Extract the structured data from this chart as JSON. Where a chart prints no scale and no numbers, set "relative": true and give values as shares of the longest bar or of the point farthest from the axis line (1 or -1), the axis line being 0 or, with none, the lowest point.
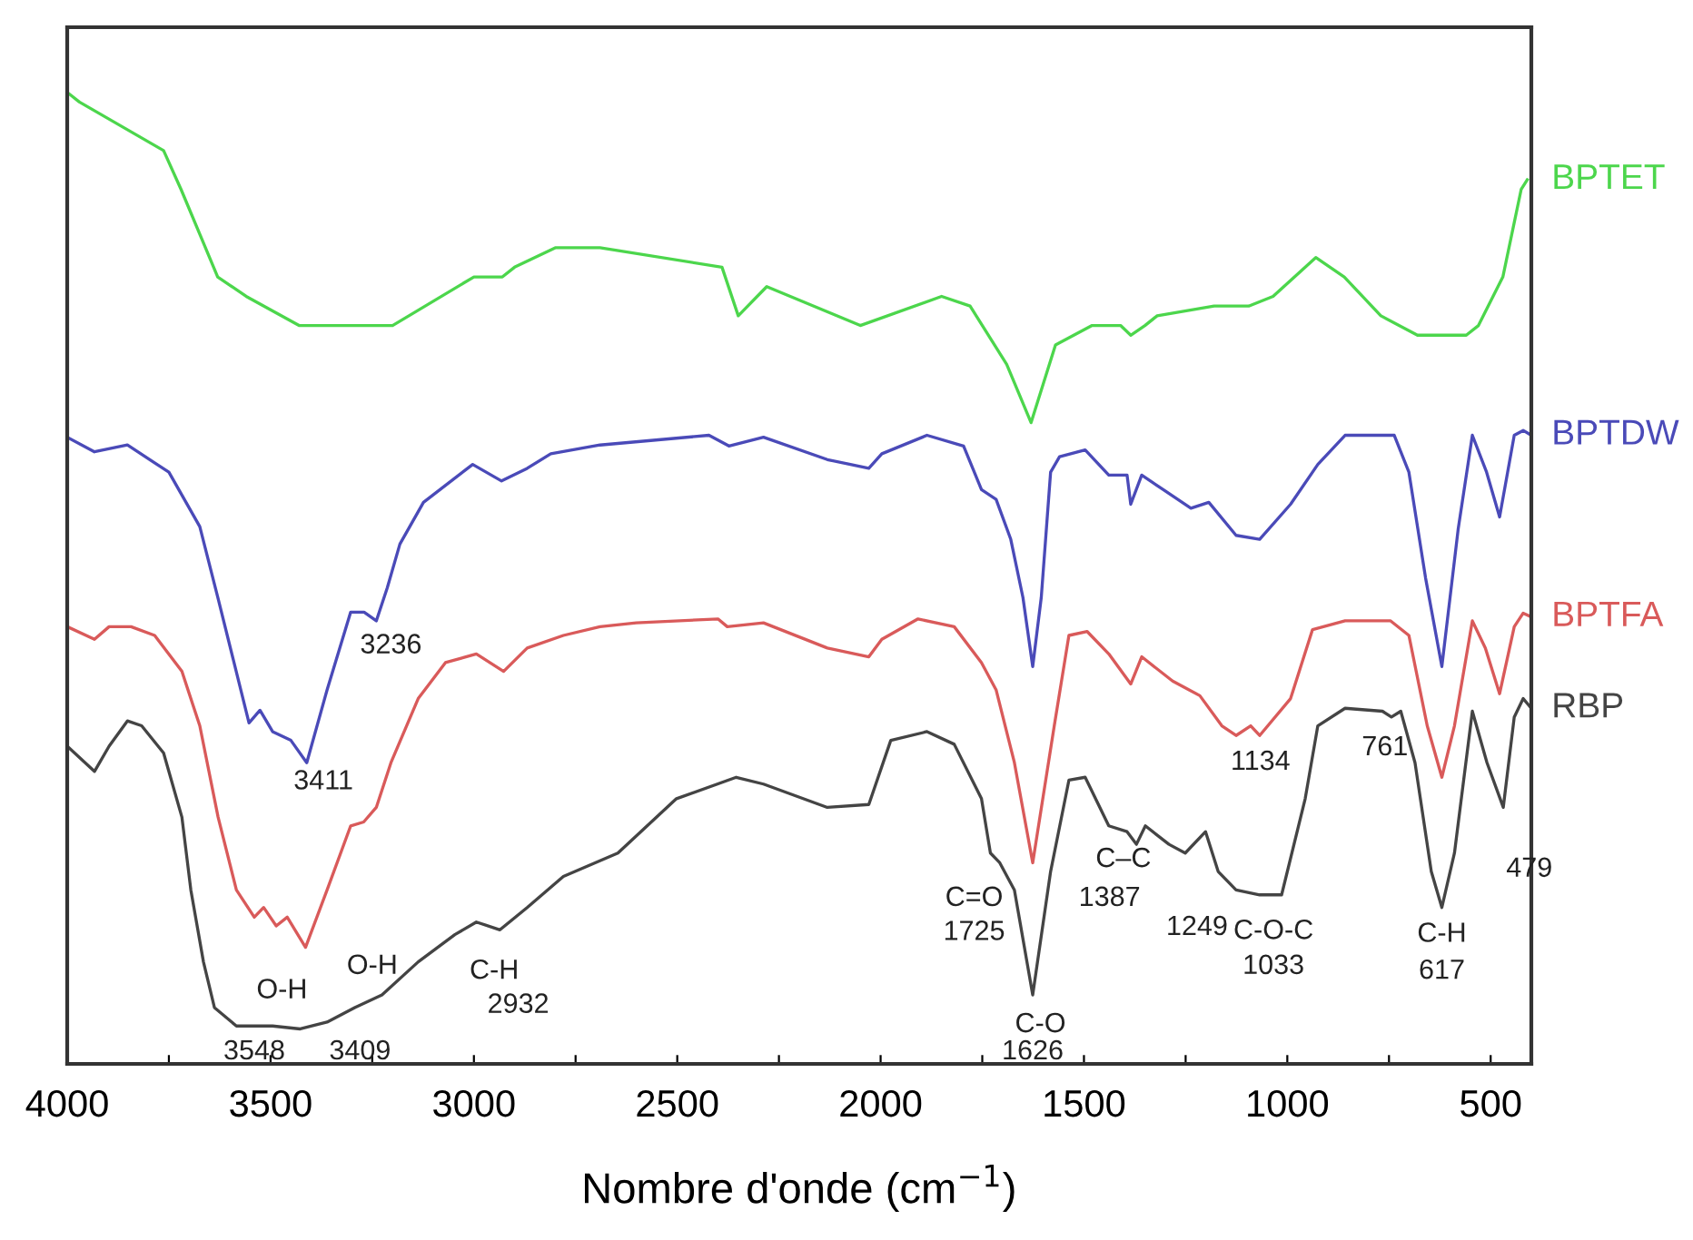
{
  "chart_data": {
    "type": "line",
    "relative": true,
    "xlabel": "Nombre d'onde (cm$^{−1}$)",
    "xlim": [
      4000,
      400
    ],
    "xticks": [
      4000,
      {
        "value": 3750,
        "label": null
      },
      3500,
      {
        "value": 3250,
        "label": null
      },
      3000,
      {
        "value": 2750,
        "label": null
      },
      2500,
      {
        "value": 2250,
        "label": null
      },
      2000,
      {
        "value": 1750,
        "label": null
      },
      1500,
      {
        "value": 1250,
        "label": null
      },
      1000,
      {
        "value": 750,
        "label": null
      },
      500
    ],
    "tick_labels": "x",
    "grid": false,
    "marker": "none",
    "line_style": "solid",
    "series": [
      {
        "name": "BPTET",
        "color": "#4cd64c",
        "x": [
          4000,
          3970,
          3763,
          3720,
          3630,
          3560,
          3430,
          3200,
          3000,
          2930,
          2900,
          2800,
          2690,
          2390,
          2350,
          2280,
          2050,
          1850,
          1780,
          1690,
          1630,
          1570,
          1480,
          1410,
          1385,
          1350,
          1320,
          1180,
          1095,
          1035,
          930,
          860,
          770,
          680,
          560,
          530,
          470,
          425,
          410
        ],
        "values": [
          1.0,
          0.99,
          0.94,
          0.9,
          0.81,
          0.79,
          0.76,
          0.76,
          0.81,
          0.81,
          0.82,
          0.84,
          0.84,
          0.82,
          0.77,
          0.8,
          0.76,
          0.79,
          0.78,
          0.72,
          0.66,
          0.74,
          0.76,
          0.76,
          0.75,
          0.76,
          0.77,
          0.78,
          0.78,
          0.79,
          0.83,
          0.81,
          0.77,
          0.75,
          0.75,
          0.76,
          0.81,
          0.9,
          0.91
        ]
      },
      {
        "name": "BPTDW",
        "color": "#4a4ab8",
        "x": [
          4000,
          3933,
          3852,
          3750,
          3674,
          3629,
          3553,
          3526,
          3495,
          3450,
          3411,
          3361,
          3303,
          3270,
          3240,
          3213,
          3182,
          3124,
          3003,
          2932,
          2869,
          2811,
          2690,
          2422,
          2373,
          2288,
          2131,
          2029,
          1997,
          1886,
          1796,
          1752,
          1716,
          1680,
          1650,
          1626,
          1605,
          1582,
          1560,
          1497,
          1439,
          1394,
          1385,
          1358,
          1305,
          1237,
          1193,
          1126,
          1068,
          992,
          925,
          858,
          737,
          701,
          660,
          620,
          580,
          545,
          510,
          478,
          442,
          420,
          400
        ],
        "values": [
          0.645,
          0.63,
          0.637,
          0.609,
          0.553,
          0.479,
          0.351,
          0.364,
          0.342,
          0.333,
          0.31,
          0.385,
          0.465,
          0.465,
          0.456,
          0.49,
          0.535,
          0.578,
          0.617,
          0.6,
          0.613,
          0.628,
          0.637,
          0.647,
          0.636,
          0.645,
          0.622,
          0.613,
          0.628,
          0.647,
          0.636,
          0.591,
          0.581,
          0.54,
          0.48,
          0.409,
          0.48,
          0.609,
          0.625,
          0.632,
          0.606,
          0.606,
          0.576,
          0.606,
          0.591,
          0.572,
          0.578,
          0.544,
          0.54,
          0.576,
          0.617,
          0.647,
          0.647,
          0.609,
          0.5,
          0.409,
          0.55,
          0.647,
          0.609,
          0.563,
          0.647,
          0.652,
          0.647
        ]
      },
      {
        "name": "BPTFA",
        "color": "#d95a5a",
        "x": [
          4000,
          3933,
          3897,
          3843,
          3785,
          3718,
          3674,
          3629,
          3584,
          3540,
          3517,
          3486,
          3459,
          3414,
          3361,
          3303,
          3271,
          3240,
          3204,
          3137,
          3070,
          2994,
          2927,
          2869,
          2780,
          2690,
          2601,
          2400,
          2377,
          2288,
          2131,
          2029,
          1997,
          1908,
          1819,
          1752,
          1716,
          1671,
          1626,
          1573,
          1537,
          1492,
          1439,
          1385,
          1358,
          1282,
          1215,
          1161,
          1126,
          1090,
          1068,
          992,
          938,
          858,
          746,
          701,
          656,
          620,
          589,
          545,
          513,
          478,
          442,
          420,
          400
        ],
        "values": [
          0.45,
          0.437,
          0.45,
          0.45,
          0.441,
          0.404,
          0.348,
          0.254,
          0.179,
          0.151,
          0.161,
          0.142,
          0.151,
          0.12,
          0.179,
          0.245,
          0.249,
          0.264,
          0.31,
          0.376,
          0.413,
          0.422,
          0.404,
          0.428,
          0.441,
          0.45,
          0.454,
          0.458,
          0.45,
          0.454,
          0.428,
          0.419,
          0.437,
          0.458,
          0.45,
          0.413,
          0.385,
          0.31,
          0.207,
          0.348,
          0.441,
          0.445,
          0.422,
          0.391,
          0.419,
          0.394,
          0.379,
          0.348,
          0.338,
          0.348,
          0.338,
          0.376,
          0.447,
          0.456,
          0.456,
          0.441,
          0.348,
          0.295,
          0.348,
          0.456,
          0.428,
          0.381,
          0.45,
          0.464,
          0.46
        ]
      },
      {
        "name": "RBP",
        "color": "#444444",
        "x": [
          4000,
          3933,
          3897,
          3852,
          3817,
          3763,
          3718,
          3696,
          3665,
          3638,
          3584,
          3495,
          3427,
          3361,
          3293,
          3226,
          3137,
          3047,
          2994,
          2936,
          2869,
          2780,
          2646,
          2502,
          2355,
          2288,
          2131,
          2029,
          1975,
          1886,
          1819,
          1752,
          1730,
          1707,
          1671,
          1626,
          1582,
          1537,
          1497,
          1439,
          1394,
          1371,
          1349,
          1291,
          1251,
          1201,
          1170,
          1126,
          1068,
          1014,
          956,
          925,
          858,
          766,
          744,
          721,
          686,
          646,
          620,
          589,
          545,
          509,
          469,
          442,
          420,
          400
        ],
        "values": [
          0.327,
          0.301,
          0.327,
          0.353,
          0.348,
          0.32,
          0.254,
          0.179,
          0.105,
          0.058,
          0.039,
          0.039,
          0.036,
          0.043,
          0.058,
          0.071,
          0.105,
          0.133,
          0.146,
          0.138,
          0.161,
          0.193,
          0.217,
          0.273,
          0.295,
          0.288,
          0.264,
          0.267,
          0.333,
          0.342,
          0.329,
          0.273,
          0.217,
          0.207,
          0.179,
          0.071,
          0.198,
          0.292,
          0.295,
          0.245,
          0.239,
          0.226,
          0.245,
          0.226,
          0.217,
          0.239,
          0.198,
          0.179,
          0.174,
          0.174,
          0.273,
          0.348,
          0.366,
          0.363,
          0.357,
          0.363,
          0.31,
          0.198,
          0.161,
          0.217,
          0.363,
          0.31,
          0.264,
          0.357,
          0.376,
          0.366
        ]
      }
    ],
    "annotations": [
      "3236",
      "3411",
      "O-H",
      "O-H",
      "3548",
      "3409",
      "C-H",
      "2932",
      "C=O",
      "1725",
      "C-O",
      "1626",
      "C–C",
      "1387",
      "1249",
      "C-O-C",
      "1033",
      "1134",
      "761",
      "C-H",
      "617",
      "479"
    ]
  }
}
